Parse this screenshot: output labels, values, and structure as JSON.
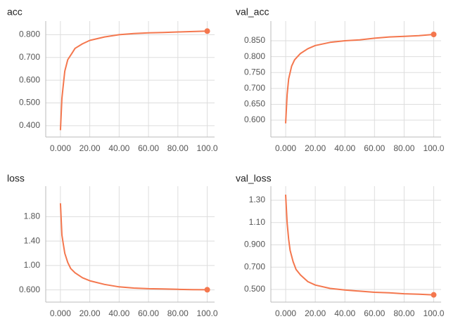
{
  "chart_data": [
    {
      "type": "line",
      "title": "acc",
      "color": "#f4774e",
      "grid": true,
      "x": [
        0,
        1,
        2,
        3,
        5,
        8,
        10,
        15,
        20,
        30,
        40,
        50,
        60,
        70,
        80,
        90,
        100
      ],
      "values": [
        0.38,
        0.52,
        0.58,
        0.64,
        0.69,
        0.72,
        0.74,
        0.76,
        0.775,
        0.79,
        0.8,
        0.805,
        0.808,
        0.81,
        0.812,
        0.814,
        0.816
      ],
      "xlim": [
        -10,
        105
      ],
      "xticks": [
        {
          "value": 0,
          "label": "0.000"
        },
        {
          "value": 20,
          "label": "20.00"
        },
        {
          "value": 40,
          "label": "40.00"
        },
        {
          "value": 60,
          "label": "60.00"
        },
        {
          "value": 80,
          "label": "80.00"
        },
        {
          "value": 100,
          "label": "100.0"
        }
      ],
      "ylim": [
        0.35,
        0.86
      ],
      "yticks": [
        {
          "value": 0.4,
          "label": "0.400"
        },
        {
          "value": 0.5,
          "label": "0.500"
        },
        {
          "value": 0.6,
          "label": "0.600"
        },
        {
          "value": 0.7,
          "label": "0.700"
        },
        {
          "value": 0.8,
          "label": "0.800"
        }
      ]
    },
    {
      "type": "line",
      "title": "val_acc",
      "color": "#f4774e",
      "grid": true,
      "x": [
        0,
        1,
        2,
        4,
        6,
        8,
        10,
        15,
        20,
        30,
        40,
        50,
        60,
        70,
        80,
        90,
        100
      ],
      "values": [
        0.59,
        0.68,
        0.73,
        0.77,
        0.79,
        0.8,
        0.81,
        0.825,
        0.835,
        0.845,
        0.85,
        0.853,
        0.858,
        0.862,
        0.864,
        0.866,
        0.87
      ],
      "xlim": [
        -10,
        105
      ],
      "xticks": [
        {
          "value": 0,
          "label": "0.000"
        },
        {
          "value": 20,
          "label": "20.00"
        },
        {
          "value": 40,
          "label": "40.00"
        },
        {
          "value": 60,
          "label": "60.00"
        },
        {
          "value": 80,
          "label": "80.00"
        },
        {
          "value": 100,
          "label": "100.0"
        }
      ],
      "ylim": [
        0.547,
        0.912
      ],
      "yticks": [
        {
          "value": 0.6,
          "label": "0.600"
        },
        {
          "value": 0.65,
          "label": "0.650"
        },
        {
          "value": 0.7,
          "label": "0.700"
        },
        {
          "value": 0.75,
          "label": "0.750"
        },
        {
          "value": 0.8,
          "label": "0.800"
        },
        {
          "value": 0.85,
          "label": "0.850"
        }
      ]
    },
    {
      "type": "line",
      "title": "loss",
      "color": "#f4774e",
      "grid": true,
      "x": [
        0,
        1,
        2,
        3,
        5,
        7,
        10,
        15,
        20,
        30,
        40,
        50,
        60,
        70,
        80,
        90,
        100
      ],
      "values": [
        2.02,
        1.5,
        1.35,
        1.2,
        1.05,
        0.95,
        0.88,
        0.8,
        0.75,
        0.69,
        0.65,
        0.63,
        0.62,
        0.615,
        0.61,
        0.605,
        0.603
      ],
      "xlim": [
        -10,
        105
      ],
      "xticks": [
        {
          "value": 0,
          "label": "0.000"
        },
        {
          "value": 20,
          "label": "20.00"
        },
        {
          "value": 40,
          "label": "40.00"
        },
        {
          "value": 60,
          "label": "60.00"
        },
        {
          "value": 80,
          "label": "80.00"
        },
        {
          "value": 100,
          "label": "100.0"
        }
      ],
      "ylim": [
        0.4,
        2.3
      ],
      "yticks": [
        {
          "value": 0.6,
          "label": "0.600"
        },
        {
          "value": 1,
          "label": "1.00"
        },
        {
          "value": 1.4,
          "label": "1.40"
        },
        {
          "value": 1.8,
          "label": "1.80"
        }
      ]
    },
    {
      "type": "line",
      "title": "val_loss",
      "color": "#f4774e",
      "grid": true,
      "x": [
        0,
        1,
        2,
        3,
        5,
        7,
        10,
        15,
        20,
        30,
        40,
        50,
        60,
        70,
        80,
        90,
        100
      ],
      "values": [
        1.35,
        1.1,
        0.95,
        0.85,
        0.75,
        0.68,
        0.63,
        0.57,
        0.54,
        0.51,
        0.495,
        0.485,
        0.475,
        0.47,
        0.462,
        0.458,
        0.452
      ],
      "xlim": [
        -10,
        105
      ],
      "xticks": [
        {
          "value": 0,
          "label": "0.000"
        },
        {
          "value": 20,
          "label": "20.00"
        },
        {
          "value": 40,
          "label": "40.00"
        },
        {
          "value": 60,
          "label": "60.00"
        },
        {
          "value": 80,
          "label": "80.00"
        },
        {
          "value": 100,
          "label": "100.0"
        }
      ],
      "ylim": [
        0.387,
        1.426
      ],
      "yticks": [
        {
          "value": 0.5,
          "label": "0.500"
        },
        {
          "value": 0.7,
          "label": "0.700"
        },
        {
          "value": 0.9,
          "label": "0.900"
        },
        {
          "value": 1.1,
          "label": "1.10"
        },
        {
          "value": 1.3,
          "label": "1.30"
        }
      ]
    }
  ]
}
